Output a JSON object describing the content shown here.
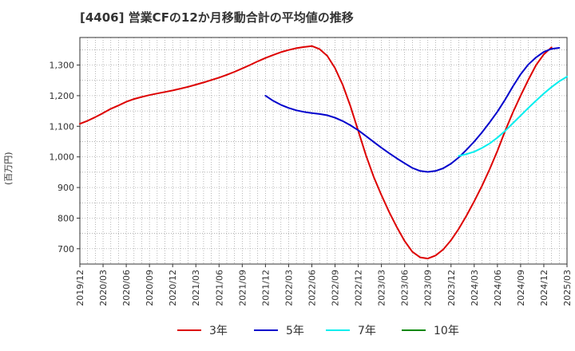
{
  "title": "[4406]  営業CFの12か月移動合計の平均値の推移",
  "chart_data": {
    "type": "line",
    "ylabel": "(百万円)",
    "xlabel": "",
    "ylim": [
      650,
      1390
    ],
    "y_ticks": [
      700,
      800,
      900,
      1000,
      1100,
      1200,
      1300
    ],
    "y_tick_labels": [
      "700",
      "800",
      "900",
      "1,000",
      "1,100",
      "1,200",
      "1,300"
    ],
    "x_tick_labels": [
      "2019/12",
      "2020/03",
      "2020/06",
      "2020/09",
      "2020/12",
      "2021/03",
      "2021/06",
      "2021/09",
      "2021/12",
      "2022/03",
      "2022/06",
      "2022/09",
      "2022/12",
      "2023/03",
      "2023/06",
      "2023/09",
      "2023/12",
      "2024/03",
      "2024/06",
      "2024/09",
      "2024/12",
      "2025/03"
    ],
    "grid": true,
    "legend_position": "bottom",
    "series": [
      {
        "name": "3年",
        "color": "#dd0000",
        "points": [
          [
            "2019/12",
            1108
          ],
          [
            "2020/01",
            1118
          ],
          [
            "2020/02",
            1130
          ],
          [
            "2020/03",
            1143
          ],
          [
            "2020/04",
            1157
          ],
          [
            "2020/05",
            1168
          ],
          [
            "2020/06",
            1180
          ],
          [
            "2020/07",
            1189
          ],
          [
            "2020/08",
            1196
          ],
          [
            "2020/09",
            1202
          ],
          [
            "2020/10",
            1207
          ],
          [
            "2020/11",
            1212
          ],
          [
            "2020/12",
            1217
          ],
          [
            "2021/01",
            1223
          ],
          [
            "2021/02",
            1229
          ],
          [
            "2021/03",
            1236
          ],
          [
            "2021/04",
            1243
          ],
          [
            "2021/05",
            1251
          ],
          [
            "2021/06",
            1259
          ],
          [
            "2021/07",
            1268
          ],
          [
            "2021/08",
            1278
          ],
          [
            "2021/09",
            1289
          ],
          [
            "2021/10",
            1300
          ],
          [
            "2021/11",
            1312
          ],
          [
            "2021/12",
            1323
          ],
          [
            "2022/01",
            1333
          ],
          [
            "2022/02",
            1342
          ],
          [
            "2022/03",
            1349
          ],
          [
            "2022/04",
            1355
          ],
          [
            "2022/05",
            1359
          ],
          [
            "2022/06",
            1362
          ],
          [
            "2022/07",
            1352
          ],
          [
            "2022/08",
            1330
          ],
          [
            "2022/09",
            1290
          ],
          [
            "2022/10",
            1235
          ],
          [
            "2022/11",
            1165
          ],
          [
            "2022/12",
            1085
          ],
          [
            "2023/01",
            1005
          ],
          [
            "2023/02",
            935
          ],
          [
            "2023/03",
            875
          ],
          [
            "2023/04",
            820
          ],
          [
            "2023/05",
            770
          ],
          [
            "2023/06",
            725
          ],
          [
            "2023/07",
            690
          ],
          [
            "2023/08",
            672
          ],
          [
            "2023/09",
            668
          ],
          [
            "2023/10",
            678
          ],
          [
            "2023/11",
            698
          ],
          [
            "2023/12",
            728
          ],
          [
            "2024/01",
            765
          ],
          [
            "2024/02",
            808
          ],
          [
            "2024/03",
            855
          ],
          [
            "2024/04",
            905
          ],
          [
            "2024/05",
            960
          ],
          [
            "2024/06",
            1020
          ],
          [
            "2024/07",
            1085
          ],
          [
            "2024/08",
            1145
          ],
          [
            "2024/09",
            1200
          ],
          [
            "2024/10",
            1252
          ],
          [
            "2024/11",
            1300
          ],
          [
            "2024/12",
            1335
          ],
          [
            "2025/01",
            1358
          ]
        ]
      },
      {
        "name": "5年",
        "color": "#0000cc",
        "points": [
          [
            "2021/12",
            1200
          ],
          [
            "2022/01",
            1183
          ],
          [
            "2022/02",
            1170
          ],
          [
            "2022/03",
            1160
          ],
          [
            "2022/04",
            1152
          ],
          [
            "2022/05",
            1147
          ],
          [
            "2022/06",
            1143
          ],
          [
            "2022/07",
            1140
          ],
          [
            "2022/08",
            1136
          ],
          [
            "2022/09",
            1128
          ],
          [
            "2022/10",
            1117
          ],
          [
            "2022/11",
            1103
          ],
          [
            "2022/12",
            1087
          ],
          [
            "2023/01",
            1068
          ],
          [
            "2023/02",
            1049
          ],
          [
            "2023/03",
            1030
          ],
          [
            "2023/04",
            1012
          ],
          [
            "2023/05",
            995
          ],
          [
            "2023/06",
            979
          ],
          [
            "2023/07",
            964
          ],
          [
            "2023/08",
            954
          ],
          [
            "2023/09",
            951
          ],
          [
            "2023/10",
            954
          ],
          [
            "2023/11",
            963
          ],
          [
            "2023/12",
            978
          ],
          [
            "2024/01",
            998
          ],
          [
            "2024/02",
            1023
          ],
          [
            "2024/03",
            1050
          ],
          [
            "2024/04",
            1080
          ],
          [
            "2024/05",
            1113
          ],
          [
            "2024/06",
            1148
          ],
          [
            "2024/07",
            1187
          ],
          [
            "2024/08",
            1230
          ],
          [
            "2024/09",
            1270
          ],
          [
            "2024/10",
            1302
          ],
          [
            "2024/11",
            1325
          ],
          [
            "2024/12",
            1343
          ],
          [
            "2025/01",
            1353
          ],
          [
            "2025/02",
            1356
          ]
        ]
      },
      {
        "name": "7年",
        "color": "#00eeee",
        "points": [
          [
            "2024/01",
            1003
          ],
          [
            "2024/02",
            1009
          ],
          [
            "2024/03",
            1017
          ],
          [
            "2024/04",
            1029
          ],
          [
            "2024/05",
            1044
          ],
          [
            "2024/06",
            1063
          ],
          [
            "2024/07",
            1085
          ],
          [
            "2024/08",
            1110
          ],
          [
            "2024/09",
            1135
          ],
          [
            "2024/10",
            1160
          ],
          [
            "2024/11",
            1184
          ],
          [
            "2024/12",
            1207
          ],
          [
            "2025/01",
            1228
          ],
          [
            "2025/02",
            1247
          ],
          [
            "2025/03",
            1262
          ]
        ]
      },
      {
        "name": "10年",
        "color": "#008800",
        "points": []
      }
    ]
  }
}
